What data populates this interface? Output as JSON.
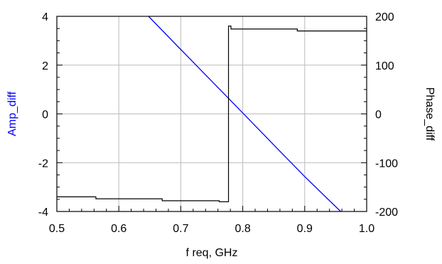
{
  "colors": {
    "amp": "#0000ff",
    "phase": "#000000",
    "grid": "#bbbbbb",
    "frame": "#000000"
  },
  "chart_data": {
    "type": "line",
    "title": "",
    "xlabel": "f req, GHz",
    "ylabel": "Amp_diff",
    "y2label": "Phase_diff",
    "xlim": [
      0.5,
      1.0
    ],
    "ylim": [
      -4,
      4
    ],
    "y2lim": [
      -200,
      200
    ],
    "grid": true,
    "x_ticks": [
      "0.5",
      "0.6",
      "0.7",
      "0.8",
      "0.9",
      "1.0"
    ],
    "y_ticks": [
      "-4",
      "-2",
      "0",
      "2",
      "4"
    ],
    "y2_ticks": [
      "-200",
      "-100",
      "0",
      "100",
      "200"
    ],
    "series": [
      {
        "name": "Amp_diff",
        "axis": "left",
        "color": "#0000ff",
        "x": [
          0.648,
          0.7,
          0.75,
          0.79,
          0.85,
          0.9,
          0.958
        ],
        "y": [
          4.0,
          2.64,
          1.34,
          0.3,
          -1.27,
          -2.57,
          -4.0
        ]
      },
      {
        "name": "Phase_diff",
        "axis": "right",
        "color": "#000000",
        "step": true,
        "x": [
          0.5,
          0.563,
          0.563,
          0.67,
          0.67,
          0.762,
          0.762,
          0.777,
          0.777,
          0.781,
          0.781,
          0.888,
          0.888,
          1.0
        ],
        "y": [
          -170,
          -170,
          -174,
          -174,
          -178,
          -178,
          -180,
          -180,
          180,
          180,
          174,
          174,
          170,
          170
        ]
      }
    ]
  }
}
